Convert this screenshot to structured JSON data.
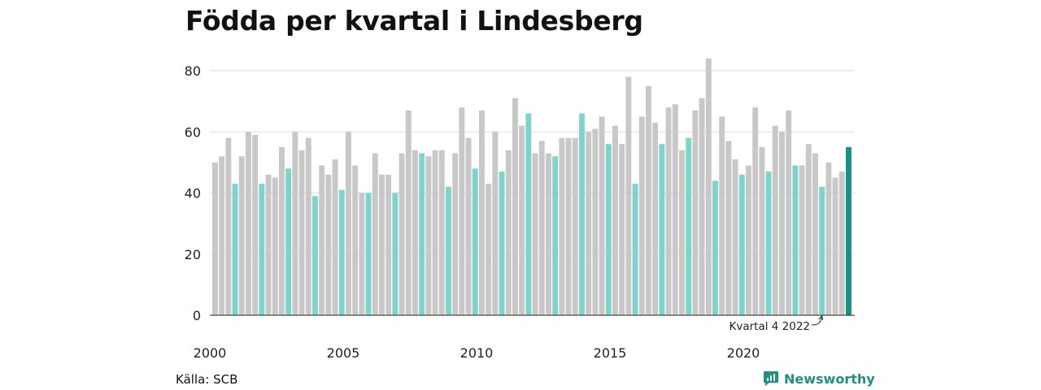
{
  "chart_data": {
    "type": "bar",
    "title": "Födda per kvartal i Lindesberg",
    "xlabel": "",
    "ylabel": "",
    "ylim": [
      0,
      84
    ],
    "yticks": [
      0,
      20,
      40,
      60,
      80
    ],
    "xtick_labels": [
      "2000",
      "2005",
      "2010",
      "2015",
      "2020"
    ],
    "grid": "horizontal",
    "colors": {
      "default": "#c8c8c8",
      "q4": "#7fd3cc",
      "highlight": "#1a8f84"
    },
    "annotation": {
      "text": "Kvartal 4 2022",
      "target_index": 91
    },
    "categories": [
      "2000 K1",
      "2000 K2",
      "2000 K3",
      "2000 K4",
      "2001 K1",
      "2001 K2",
      "2001 K3",
      "2001 K4",
      "2002 K1",
      "2002 K2",
      "2002 K3",
      "2002 K4",
      "2003 K1",
      "2003 K2",
      "2003 K3",
      "2003 K4",
      "2004 K1",
      "2004 K2",
      "2004 K3",
      "2004 K4",
      "2005 K1",
      "2005 K2",
      "2005 K3",
      "2005 K4",
      "2006 K1",
      "2006 K2",
      "2006 K3",
      "2006 K4",
      "2007 K1",
      "2007 K2",
      "2007 K3",
      "2007 K4",
      "2008 K1",
      "2008 K2",
      "2008 K3",
      "2008 K4",
      "2009 K1",
      "2009 K2",
      "2009 K3",
      "2009 K4",
      "2010 K1",
      "2010 K2",
      "2010 K3",
      "2010 K4",
      "2011 K1",
      "2011 K2",
      "2011 K3",
      "2011 K4",
      "2012 K1",
      "2012 K2",
      "2012 K3",
      "2012 K4",
      "2013 K1",
      "2013 K2",
      "2013 K3",
      "2013 K4",
      "2014 K1",
      "2014 K2",
      "2014 K3",
      "2014 K4",
      "2015 K1",
      "2015 K2",
      "2015 K3",
      "2015 K4",
      "2016 K1",
      "2016 K2",
      "2016 K3",
      "2016 K4",
      "2017 K1",
      "2017 K2",
      "2017 K3",
      "2017 K4",
      "2018 K1",
      "2018 K2",
      "2018 K3",
      "2018 K4",
      "2019 K1",
      "2019 K2",
      "2019 K3",
      "2019 K4",
      "2020 K1",
      "2020 K2",
      "2020 K3",
      "2020 K4",
      "2021 K1",
      "2021 K2",
      "2021 K3",
      "2021 K4",
      "2022 K1",
      "2022 K2",
      "2022 K3",
      "2022 K4",
      "2023 K1",
      "2023 K2",
      "2023 K3",
      "2023 K4"
    ],
    "values": [
      50,
      52,
      58,
      43,
      52,
      60,
      59,
      43,
      46,
      45,
      55,
      48,
      60,
      54,
      58,
      39,
      49,
      46,
      51,
      41,
      60,
      49,
      40,
      40,
      53,
      46,
      46,
      40,
      53,
      67,
      54,
      53,
      52,
      54,
      54,
      42,
      53,
      68,
      58,
      48,
      67,
      43,
      60,
      47,
      54,
      71,
      62,
      66,
      53,
      57,
      53,
      52,
      58,
      58,
      58,
      66,
      60,
      61,
      65,
      56,
      62,
      56,
      78,
      43,
      65,
      75,
      63,
      56,
      68,
      69,
      54,
      58,
      67,
      71,
      84,
      44,
      65,
      57,
      51,
      46,
      49,
      68,
      55,
      47,
      62,
      60,
      67,
      49,
      49,
      56,
      53,
      42,
      50,
      45,
      47,
      55
    ],
    "highlight_index": 95
  },
  "source": "Källa: SCB",
  "brand": {
    "name": "Newsworthy",
    "icon": "newsworthy-logo-icon"
  }
}
